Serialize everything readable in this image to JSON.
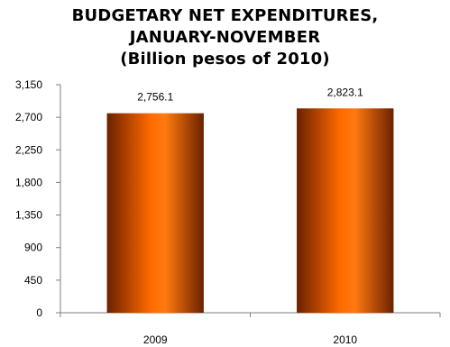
{
  "chart_data": {
    "type": "bar",
    "title_lines": [
      "BUDGETARY NET EXPENDITURES,",
      "JANUARY-NOVEMBER",
      "(Billion pesos of 2010)"
    ],
    "categories": [
      "2009",
      "2010"
    ],
    "values": [
      2756.1,
      2823.1
    ],
    "value_labels": [
      "2,756.1",
      "2,823.1"
    ],
    "y_ticks": [
      0,
      450,
      900,
      1350,
      1800,
      2250,
      2700,
      3150
    ],
    "y_tick_labels": [
      "0",
      "450",
      "900",
      "1,350",
      "1,800",
      "2,250",
      "2,700",
      "3,150"
    ],
    "ylim": [
      0,
      3150
    ],
    "xlabel": "",
    "ylabel": "",
    "grid": false,
    "legend": "none",
    "bar_colors": {
      "edge": "#6b2100",
      "mid": "#ff6a00",
      "highlight": "#ff7a10"
    }
  }
}
